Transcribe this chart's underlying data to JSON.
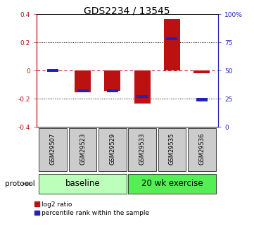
{
  "title": "GDS2234 / 13545",
  "samples": [
    "GSM29507",
    "GSM29523",
    "GSM29529",
    "GSM29533",
    "GSM29535",
    "GSM29536"
  ],
  "log2_ratio": [
    0.0,
    -0.155,
    -0.145,
    -0.235,
    0.365,
    -0.02
  ],
  "percentile_rank": [
    50,
    32,
    32,
    27,
    78,
    24
  ],
  "group_starts": [
    0,
    3
  ],
  "group_ends": [
    2,
    5
  ],
  "group_labels": [
    "baseline",
    "20 wk exercise"
  ],
  "group_colors": [
    "#bbffbb",
    "#55ee55"
  ],
  "ylim": [
    -0.4,
    0.4
  ],
  "yticks_left": [
    -0.4,
    -0.2,
    0.0,
    0.2,
    0.4
  ],
  "yticks_right": [
    0,
    25,
    50,
    75,
    100
  ],
  "bar_width": 0.55,
  "blue_bar_width": 0.38,
  "blue_bar_height": 0.022,
  "red_color": "#bb1111",
  "blue_color": "#2222bb",
  "dashed_color": "#cc2222",
  "sample_box_color": "#cccccc",
  "legend_red_label": "log2 ratio",
  "legend_blue_label": "percentile rank within the sample",
  "protocol_label": "protocol",
  "title_fontsize": 10,
  "tick_fontsize": 6.5,
  "sample_fontsize": 6,
  "group_fontsize": 8.5,
  "legend_fontsize": 6.5,
  "protocol_fontsize": 7.5
}
